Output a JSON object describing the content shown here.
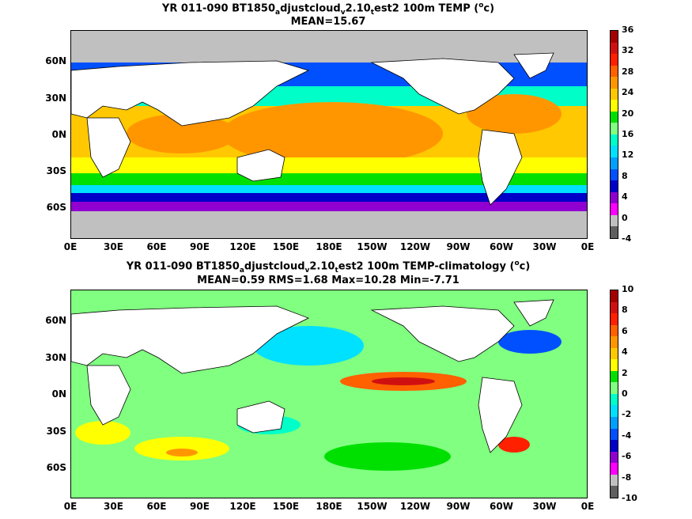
{
  "panels": [
    {
      "title_parts": [
        "YR 011-090 BT1850",
        "a",
        "djustcloud",
        "v",
        "2.10",
        "t",
        "est2 100m TEMP (",
        "o",
        "c)"
      ],
      "subtitle": "MEAN=15.67",
      "colorbar_labels": [
        "36",
        "32",
        "28",
        "24",
        "20",
        "16",
        "12",
        "8",
        "4",
        "0",
        "-4"
      ],
      "colorbar_colors": [
        "#a50000",
        "#d01010",
        "#ff2000",
        "#ff6000",
        "#ff9600",
        "#ffc800",
        "#ffff00",
        "#00e000",
        "#80ff80",
        "#00ffc8",
        "#00e0ff",
        "#00a0ff",
        "#0050ff",
        "#0000c8",
        "#9000d0",
        "#ff00ff",
        "#c0c0c0",
        "#606060"
      ]
    },
    {
      "title_parts": [
        "YR 011-090 BT1850",
        "a",
        "djustcloud",
        "v",
        "2.10",
        "t",
        "est2 100m TEMP-climatology (",
        "o",
        "c)"
      ],
      "subtitle": "MEAN=0.59   RMS=1.68   Max=10.28   Min=-7.71",
      "colorbar_labels": [
        "10",
        "8",
        "6",
        "4",
        "2",
        "0",
        "-2",
        "-4",
        "-6",
        "-8",
        "-10"
      ],
      "colorbar_colors": [
        "#a50000",
        "#d01010",
        "#ff2000",
        "#ff6000",
        "#ff9600",
        "#ffc800",
        "#ffff00",
        "#00e000",
        "#80ff80",
        "#00ffc8",
        "#00e0ff",
        "#00a0ff",
        "#0050ff",
        "#0000c8",
        "#9000d0",
        "#ff00ff",
        "#c0c0c0",
        "#606060"
      ]
    }
  ],
  "lat_labels": [
    "60N",
    "30N",
    "0N",
    "30S",
    "60S"
  ],
  "lon_labels": [
    "0E",
    "30E",
    "60E",
    "90E",
    "120E",
    "150E",
    "180E",
    "150W",
    "120W",
    "90W",
    "60W",
    "30W",
    "0E"
  ]
}
